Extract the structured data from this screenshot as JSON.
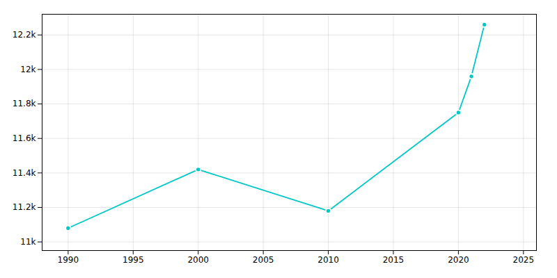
{
  "chart_data": {
    "type": "line",
    "x": [
      1990,
      2000,
      2010,
      2020,
      2021,
      2022
    ],
    "values": [
      11080,
      11420,
      11180,
      11750,
      11960,
      12260
    ],
    "color": "#00c8c8",
    "marker": "circle",
    "xlim": [
      1988,
      2026
    ],
    "ylim": [
      10950,
      12320
    ],
    "xticks": [
      1990,
      1995,
      2000,
      2005,
      2010,
      2015,
      2020,
      2025
    ],
    "yticks": [
      {
        "value": 11000,
        "label": "11k"
      },
      {
        "value": 11200,
        "label": "11.2k"
      },
      {
        "value": 11400,
        "label": "11.4k"
      },
      {
        "value": 11600,
        "label": "11.6k"
      },
      {
        "value": 11800,
        "label": "11.8k"
      },
      {
        "value": 12000,
        "label": "12k"
      },
      {
        "value": 12200,
        "label": "12.2k"
      }
    ],
    "grid": true
  }
}
